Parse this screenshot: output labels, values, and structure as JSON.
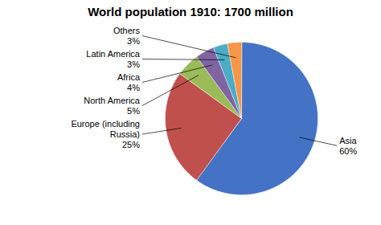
{
  "chart_data": {
    "type": "pie",
    "title": "World population 1910: 1700 million",
    "categories": [
      "Asia",
      "Europe (including\nRussia)",
      "North America",
      "Africa",
      "Latin America",
      "Others"
    ],
    "values": [
      60,
      25,
      5,
      4,
      3,
      3
    ],
    "value_labels": [
      "60%",
      "25%",
      "5%",
      "4%",
      "3%",
      "3%"
    ],
    "colors": [
      "#4472C4",
      "#C0504D",
      "#9BBB59",
      "#8064A2",
      "#4BACC6",
      "#F79646"
    ],
    "data_labels": true
  }
}
